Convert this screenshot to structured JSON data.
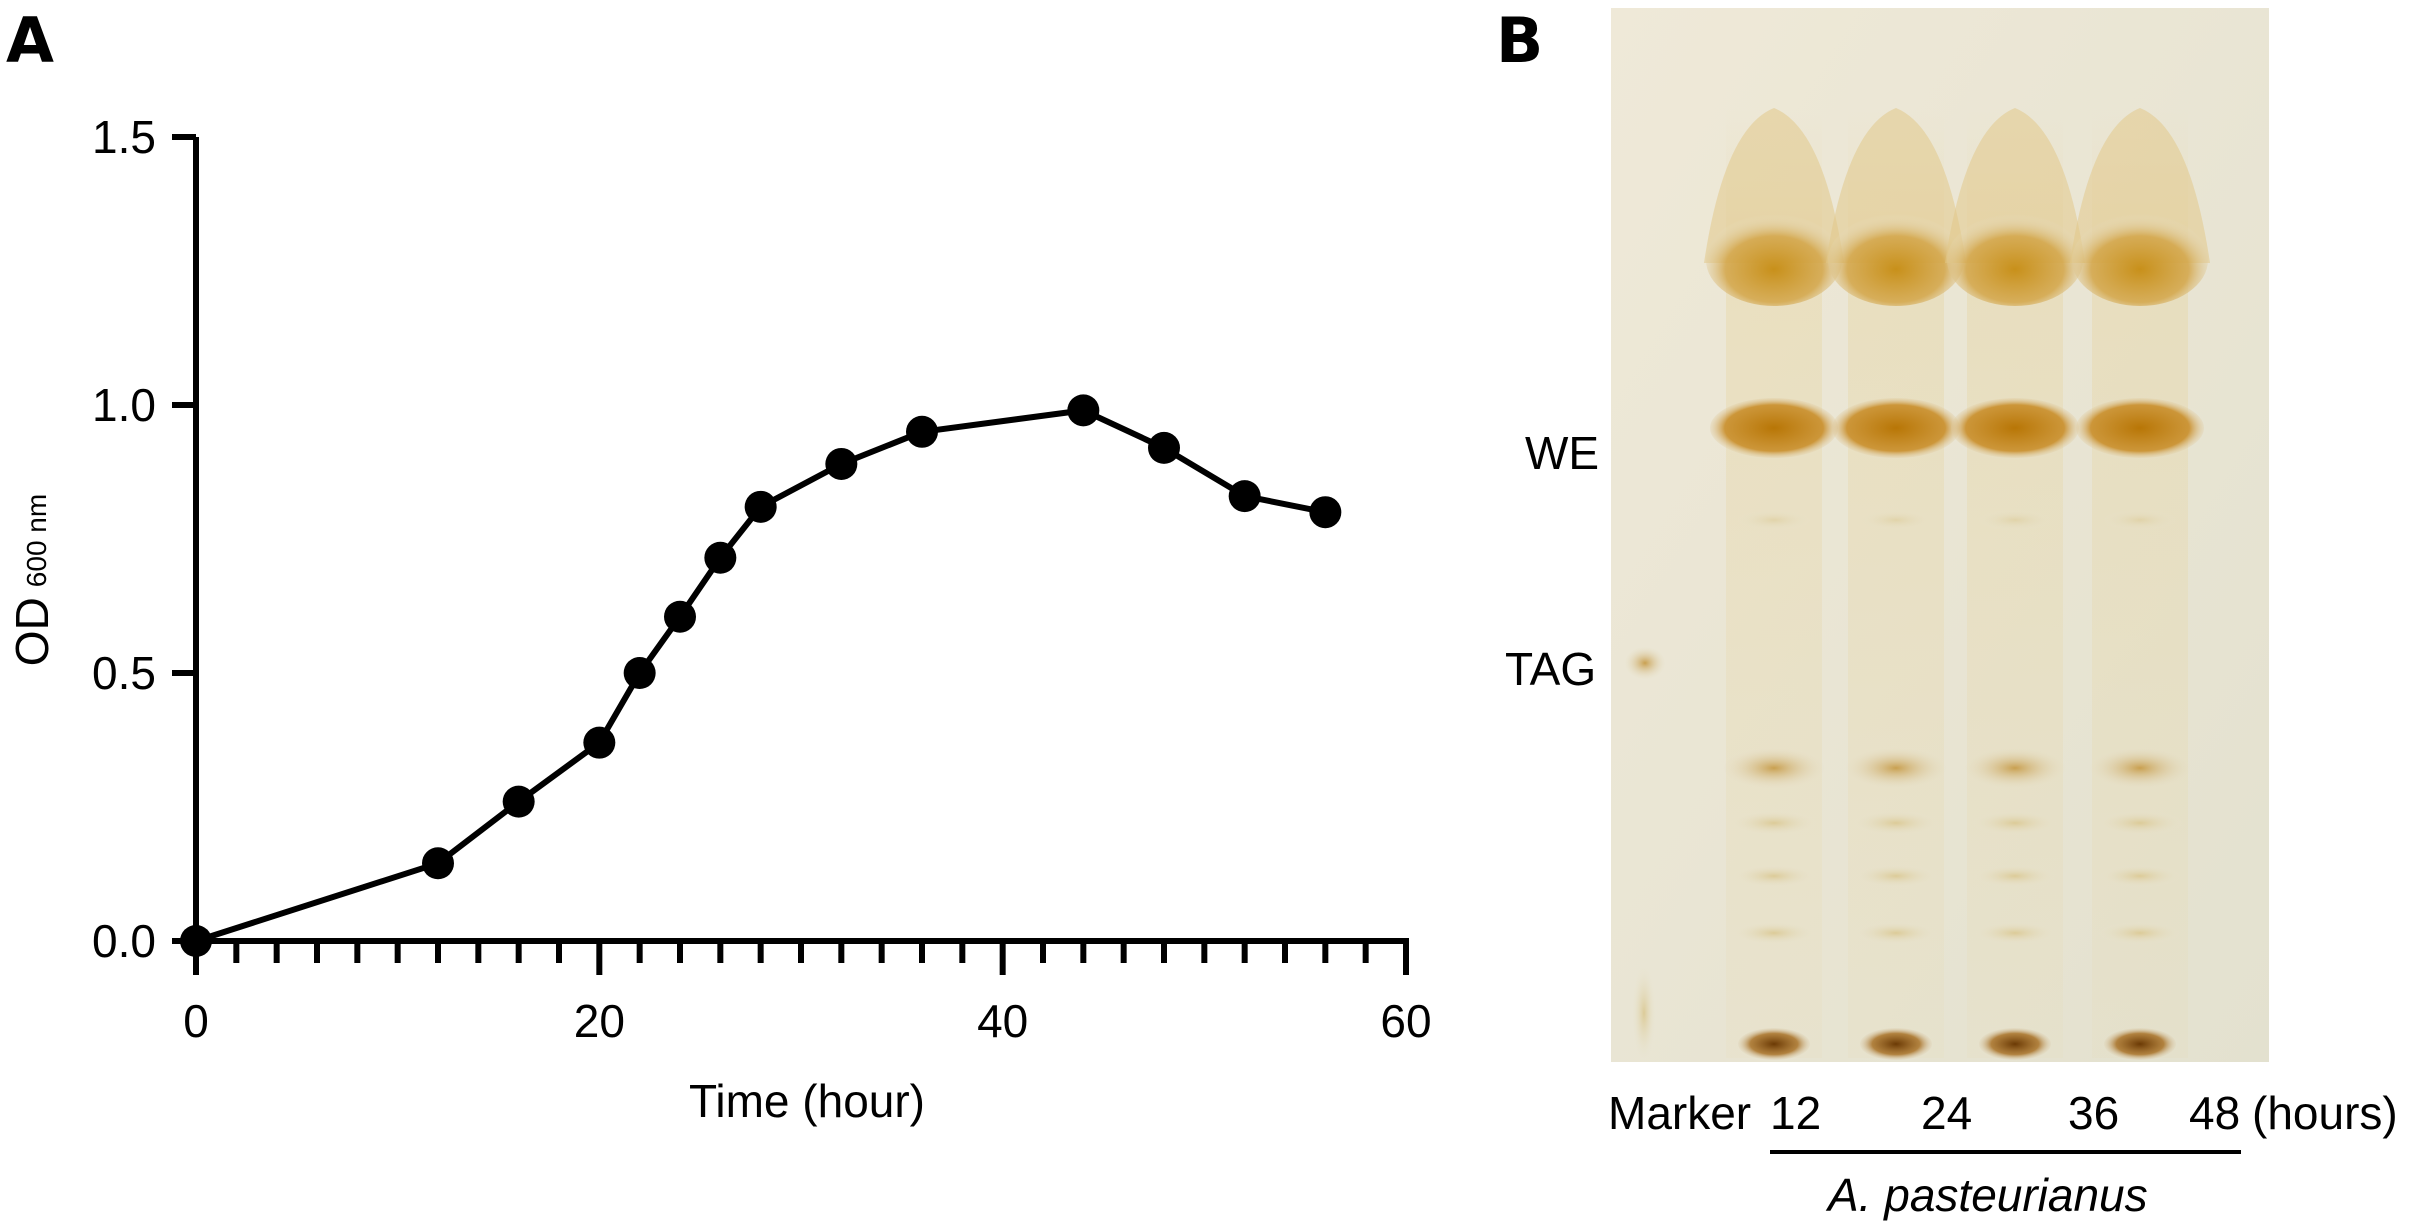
{
  "panels": {
    "a_label": "A",
    "b_label": "B"
  },
  "chart_data": {
    "type": "line",
    "xlabel": "Time (hour)",
    "ylabel": "OD",
    "ylabel_subscript": "600 nm",
    "xlim": [
      0,
      60
    ],
    "ylim": [
      0,
      1.5
    ],
    "x_ticks": [
      "0",
      "20",
      "40",
      "60"
    ],
    "y_ticks": [
      "0.0",
      "0.5",
      "1.0",
      "1.5"
    ],
    "x_minor_tick_step": 2,
    "grid": false,
    "series": [
      {
        "x": [
          0,
          12,
          16,
          20,
          22,
          24,
          26,
          28,
          32,
          36,
          44,
          48,
          52,
          56
        ],
        "y": [
          0.0,
          0.145,
          0.26,
          0.37,
          0.5,
          0.605,
          0.715,
          0.81,
          0.89,
          0.95,
          0.99,
          0.92,
          0.83,
          0.8
        ]
      }
    ],
    "marker": "circle",
    "line_color": "#000000"
  },
  "gel": {
    "band_labels": {
      "we": "WE",
      "tag": "TAG"
    },
    "lane_labels": [
      "Marker",
      "12",
      "24",
      "36",
      "48"
    ],
    "unit_label": "(hours)",
    "group_caption": "A. pasteurianus",
    "background_color": "#e9e5d3",
    "band_color": "#b77f10"
  }
}
